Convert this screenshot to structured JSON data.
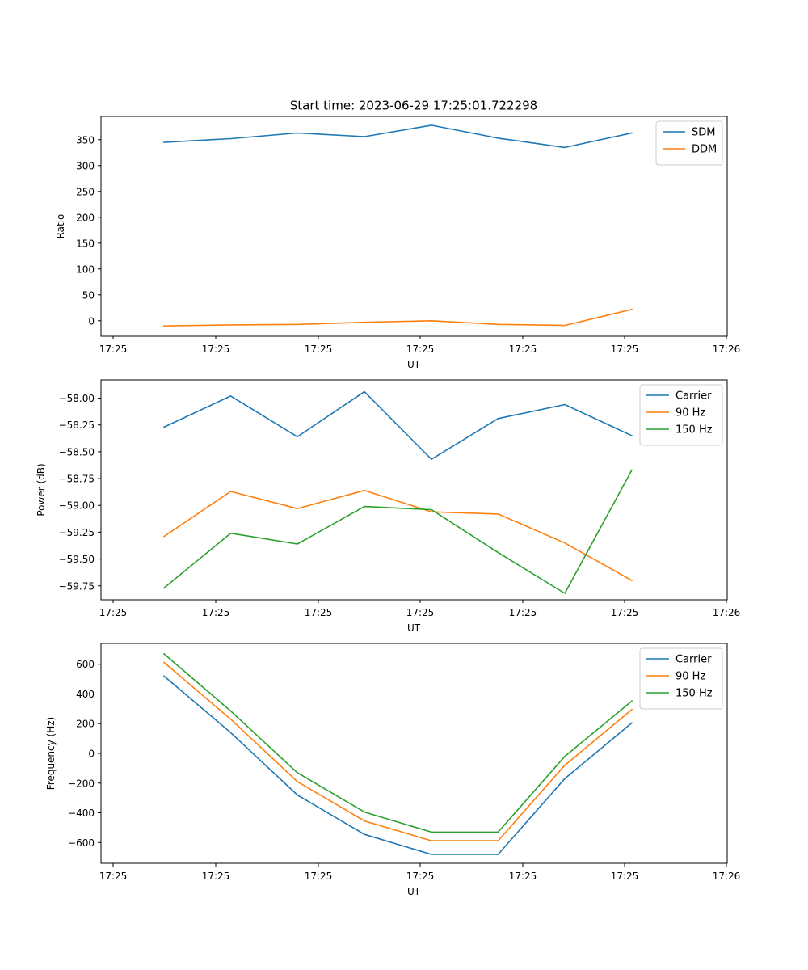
{
  "figure": {
    "title": "Start time: 2023-06-29 17:25:01.722298"
  },
  "colors": {
    "blue": "#1f77b4",
    "orange": "#ff7f0e",
    "green": "#2ca02c"
  },
  "chart_data": [
    {
      "type": "line",
      "title": "Start time: 2023-06-29 17:25:01.722298",
      "xlabel": "UT",
      "ylabel": "Ratio",
      "x_tick_labels": [
        "17:25",
        "17:25",
        "17:25",
        "17:25",
        "17:25",
        "17:25",
        "17:25"
      ],
      "x_tick_labels_end": "17:26",
      "ylim": [
        -30,
        395
      ],
      "yticks": [
        0,
        50,
        100,
        150,
        200,
        250,
        300,
        350
      ],
      "y_tick_labels": [
        "0",
        "50",
        "100",
        "150",
        "200",
        "250",
        "300",
        "350"
      ],
      "legend": "top-right",
      "grid": false,
      "series": [
        {
          "name": "SDM",
          "color": "#1f77b4",
          "values": [
            345,
            352,
            363,
            356,
            378,
            353,
            335,
            363
          ]
        },
        {
          "name": "DDM",
          "color": "#ff7f0e",
          "values": [
            -10,
            -8,
            -7,
            -3,
            0,
            -7,
            -9,
            22
          ]
        }
      ]
    },
    {
      "type": "line",
      "title": "",
      "xlabel": "UT",
      "ylabel": "Power (dB)",
      "x_tick_labels": [
        "17:25",
        "17:25",
        "17:25",
        "17:25",
        "17:25",
        "17:25",
        "17:25"
      ],
      "x_tick_labels_end": "17:26",
      "ylim": [
        -59.88,
        -57.83
      ],
      "yticks": [
        -58.0,
        -58.25,
        -58.5,
        -58.75,
        -59.0,
        -59.25,
        -59.5,
        -59.75
      ],
      "y_tick_labels": [
        "−58.00",
        "−58.25",
        "−58.50",
        "−58.75",
        "−59.00",
        "−59.25",
        "−59.50",
        "−59.75"
      ],
      "legend": "top-right",
      "grid": false,
      "series": [
        {
          "name": "Carrier",
          "color": "#1f77b4",
          "values": [
            -58.27,
            -57.98,
            -58.36,
            -57.94,
            -58.57,
            -58.19,
            -58.06,
            -58.35
          ]
        },
        {
          "name": "90 Hz",
          "color": "#ff7f0e",
          "values": [
            -59.29,
            -58.87,
            -59.03,
            -58.86,
            -59.06,
            -59.08,
            -59.35,
            -59.7
          ]
        },
        {
          "name": "150 Hz",
          "color": "#2ca02c",
          "values": [
            -59.77,
            -59.26,
            -59.36,
            -59.01,
            -59.04,
            -59.44,
            -59.82,
            -58.67
          ]
        }
      ]
    },
    {
      "type": "line",
      "title": "",
      "xlabel": "UT",
      "ylabel": "Frequency (Hz)",
      "x_tick_labels": [
        "17:25",
        "17:25",
        "17:25",
        "17:25",
        "17:25",
        "17:25",
        "17:25"
      ],
      "x_tick_labels_end": "17:26",
      "ylim": [
        -740,
        740
      ],
      "yticks": [
        600,
        400,
        200,
        0,
        -200,
        -400,
        -600
      ],
      "y_tick_labels": [
        "600",
        "400",
        "200",
        "0",
        "−200",
        "−400",
        "−600"
      ],
      "legend": "top-right",
      "grid": false,
      "series": [
        {
          "name": "Carrier",
          "color": "#1f77b4",
          "values": [
            520,
            140,
            -280,
            -545,
            -680,
            -680,
            -170,
            205
          ]
        },
        {
          "name": "90 Hz",
          "color": "#ff7f0e",
          "values": [
            612,
            230,
            -190,
            -455,
            -588,
            -588,
            -80,
            295
          ]
        },
        {
          "name": "150 Hz",
          "color": "#2ca02c",
          "values": [
            670,
            285,
            -130,
            -395,
            -530,
            -530,
            -20,
            352
          ]
        }
      ]
    }
  ]
}
